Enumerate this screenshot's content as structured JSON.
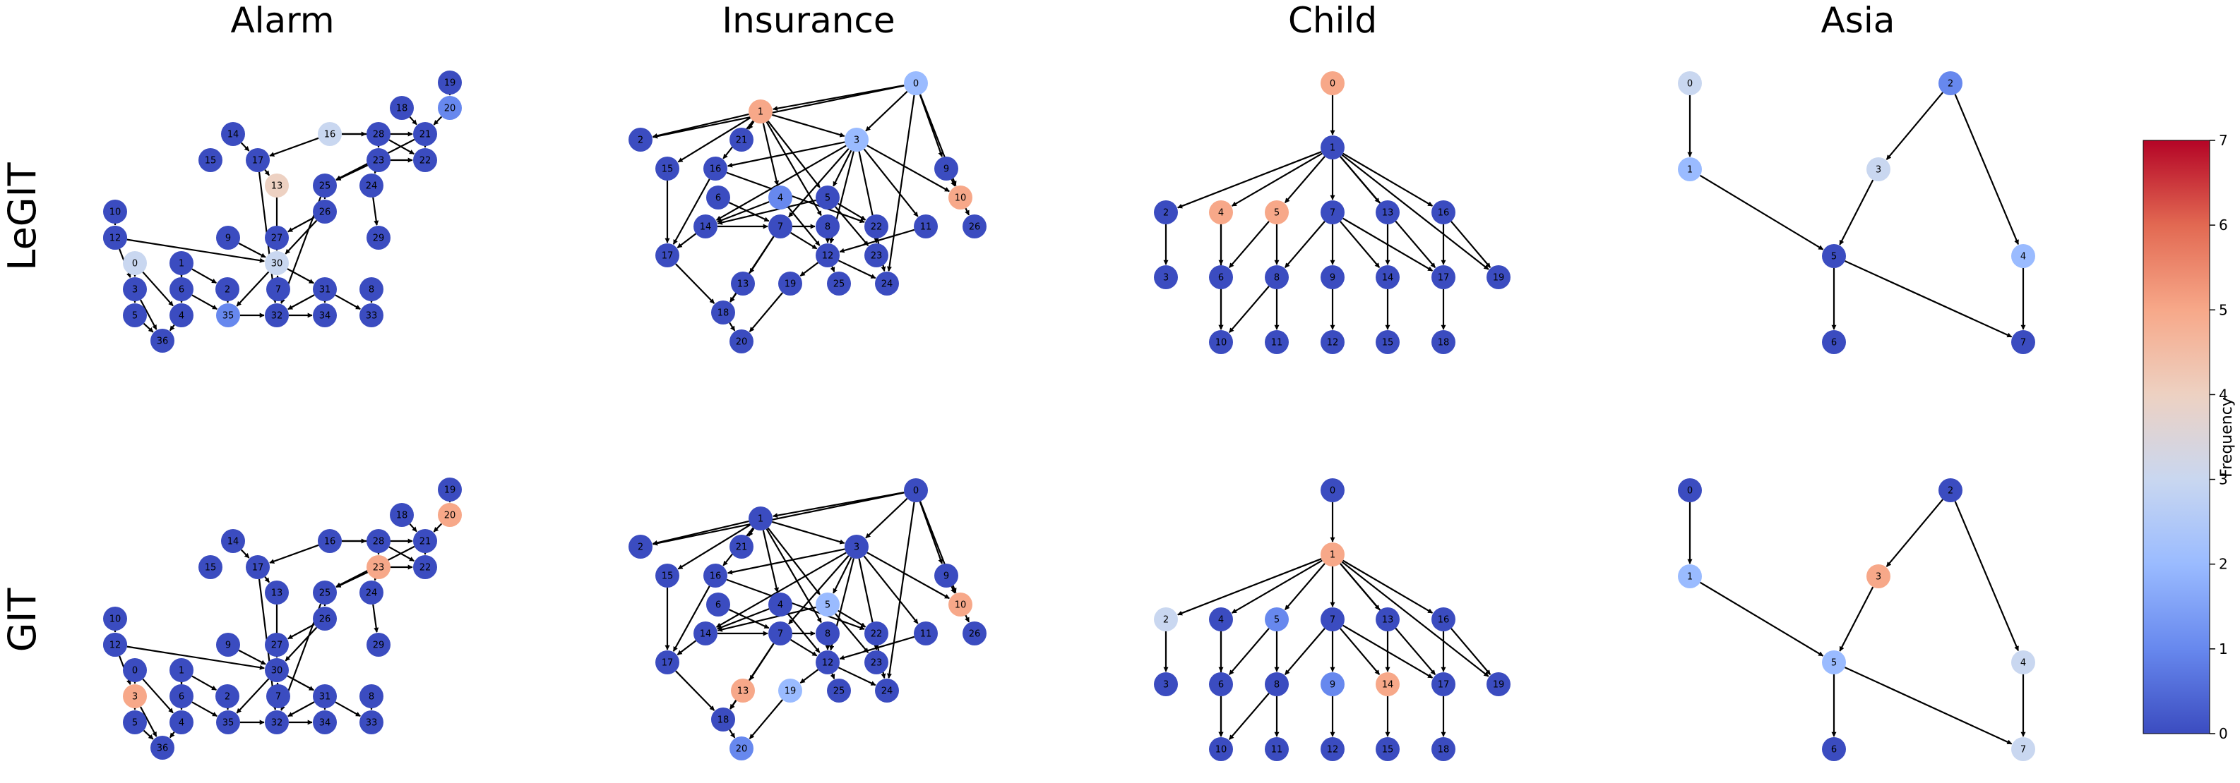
{
  "column_titles": [
    "Alarm",
    "Insurance",
    "Child",
    "Asia"
  ],
  "row_labels": [
    "LeGIT",
    "GIT"
  ],
  "colorbar": {
    "label": "Frequency",
    "ticks": [
      "0",
      "1",
      "2",
      "3",
      "4",
      "5",
      "6",
      "7"
    ],
    "min": 0,
    "max": 7,
    "colormap": "coolwarm",
    "stops": [
      "#3b4cc0",
      "#6788ee",
      "#9abbff",
      "#c9d7f0",
      "#edd1c2",
      "#f7a889",
      "#e26952",
      "#b40426"
    ]
  },
  "node_colors": {
    "0": "#3b4cc0",
    "1": "#6f92f3",
    "2": "#aac7fd",
    "3": "#d9dce1",
    "5": "#f4987a"
  },
  "graphs": {
    "asia": {
      "nodes": [
        {
          "id": "0",
          "freq": {
            "legit": 3,
            "git": 0
          }
        },
        {
          "id": "1",
          "freq": {
            "legit": 2,
            "git": 2
          }
        },
        {
          "id": "2",
          "freq": {
            "legit": 1,
            "git": 0
          }
        },
        {
          "id": "3",
          "freq": {
            "legit": 3,
            "git": 5
          }
        },
        {
          "id": "4",
          "freq": {
            "legit": 2,
            "git": 3
          }
        },
        {
          "id": "5",
          "freq": {
            "legit": 0,
            "git": 2
          }
        },
        {
          "id": "6",
          "freq": {
            "legit": 0,
            "git": 0
          }
        },
        {
          "id": "7",
          "freq": {
            "legit": 0,
            "git": 3
          }
        }
      ],
      "edges": [
        [
          "0",
          "1"
        ],
        [
          "1",
          "5"
        ],
        [
          "2",
          "3"
        ],
        [
          "2",
          "4"
        ],
        [
          "3",
          "5"
        ],
        [
          "4",
          "7"
        ],
        [
          "5",
          "6"
        ],
        [
          "5",
          "7"
        ]
      ]
    },
    "child": {
      "nodes": [
        {
          "id": "0",
          "freq": {
            "legit": 5,
            "git": 0
          }
        },
        {
          "id": "1",
          "freq": {
            "legit": 0,
            "git": 5
          }
        },
        {
          "id": "2",
          "freq": {
            "legit": 0,
            "git": 3
          }
        },
        {
          "id": "3",
          "freq": {
            "legit": 0,
            "git": 0
          }
        },
        {
          "id": "4",
          "freq": {
            "legit": 5,
            "git": 0
          }
        },
        {
          "id": "5",
          "freq": {
            "legit": 5,
            "git": 1
          }
        },
        {
          "id": "6",
          "freq": {
            "legit": 0,
            "git": 0
          }
        },
        {
          "id": "7",
          "freq": {
            "legit": 0,
            "git": 0
          }
        },
        {
          "id": "8",
          "freq": {
            "legit": 0,
            "git": 0
          }
        },
        {
          "id": "9",
          "freq": {
            "legit": 0,
            "git": 1
          }
        },
        {
          "id": "10",
          "freq": {
            "legit": 0,
            "git": 0
          }
        },
        {
          "id": "11",
          "freq": {
            "legit": 0,
            "git": 0
          }
        },
        {
          "id": "12",
          "freq": {
            "legit": 0,
            "git": 0
          }
        },
        {
          "id": "13",
          "freq": {
            "legit": 0,
            "git": 0
          }
        },
        {
          "id": "14",
          "freq": {
            "legit": 0,
            "git": 5
          }
        },
        {
          "id": "15",
          "freq": {
            "legit": 0,
            "git": 0
          }
        },
        {
          "id": "16",
          "freq": {
            "legit": 0,
            "git": 0
          }
        },
        {
          "id": "17",
          "freq": {
            "legit": 0,
            "git": 0
          }
        },
        {
          "id": "18",
          "freq": {
            "legit": 0,
            "git": 0
          }
        },
        {
          "id": "19",
          "freq": {
            "legit": 0,
            "git": 0
          }
        }
      ],
      "edges": [
        [
          "0",
          "1"
        ],
        [
          "1",
          "2"
        ],
        [
          "1",
          "4"
        ],
        [
          "1",
          "5"
        ],
        [
          "1",
          "7"
        ],
        [
          "1",
          "13"
        ],
        [
          "1",
          "16"
        ],
        [
          "1",
          "19"
        ],
        [
          "1",
          "17"
        ],
        [
          "2",
          "3"
        ],
        [
          "4",
          "6"
        ],
        [
          "5",
          "6"
        ],
        [
          "5",
          "8"
        ],
        [
          "4",
          "10"
        ],
        [
          "6",
          "10"
        ],
        [
          "7",
          "8"
        ],
        [
          "7",
          "9"
        ],
        [
          "7",
          "14"
        ],
        [
          "7",
          "17"
        ],
        [
          "8",
          "11"
        ],
        [
          "8",
          "10"
        ],
        [
          "9",
          "12"
        ],
        [
          "13",
          "14"
        ],
        [
          "14",
          "15"
        ],
        [
          "16",
          "17"
        ],
        [
          "16",
          "19"
        ],
        [
          "17",
          "18"
        ]
      ]
    },
    "insurance": {
      "nodes": [
        {
          "id": "0",
          "freq": {
            "legit": 2,
            "git": 0
          }
        },
        {
          "id": "1",
          "freq": {
            "legit": 5,
            "git": 0
          }
        },
        {
          "id": "2",
          "freq": {
            "legit": 0,
            "git": 0
          }
        },
        {
          "id": "3",
          "freq": {
            "legit": 2,
            "git": 0
          }
        },
        {
          "id": "4",
          "freq": {
            "legit": 1,
            "git": 0
          }
        },
        {
          "id": "5",
          "freq": {
            "legit": 0,
            "git": 2
          }
        },
        {
          "id": "6",
          "freq": {
            "legit": 0,
            "git": 0
          }
        },
        {
          "id": "7",
          "freq": {
            "legit": 0,
            "git": 0
          }
        },
        {
          "id": "8",
          "freq": {
            "legit": 0,
            "git": 0
          }
        },
        {
          "id": "9",
          "freq": {
            "legit": 0,
            "git": 0
          }
        },
        {
          "id": "10",
          "freq": {
            "legit": 5,
            "git": 5
          }
        },
        {
          "id": "11",
          "freq": {
            "legit": 0,
            "git": 0
          }
        },
        {
          "id": "12",
          "freq": {
            "legit": 0,
            "git": 0
          }
        },
        {
          "id": "13",
          "freq": {
            "legit": 0,
            "git": 5
          }
        },
        {
          "id": "14",
          "freq": {
            "legit": 0,
            "git": 0
          }
        },
        {
          "id": "15",
          "freq": {
            "legit": 0,
            "git": 0
          }
        },
        {
          "id": "16",
          "freq": {
            "legit": 0,
            "git": 0
          }
        },
        {
          "id": "17",
          "freq": {
            "legit": 0,
            "git": 0
          }
        },
        {
          "id": "18",
          "freq": {
            "legit": 0,
            "git": 0
          }
        },
        {
          "id": "19",
          "freq": {
            "legit": 0,
            "git": 2
          }
        },
        {
          "id": "20",
          "freq": {
            "legit": 0,
            "git": 1
          }
        },
        {
          "id": "21",
          "freq": {
            "legit": 0,
            "git": 0
          }
        },
        {
          "id": "22",
          "freq": {
            "legit": 0,
            "git": 0
          }
        },
        {
          "id": "23",
          "freq": {
            "legit": 0,
            "git": 0
          }
        },
        {
          "id": "24",
          "freq": {
            "legit": 0,
            "git": 0
          }
        },
        {
          "id": "25",
          "freq": {
            "legit": 0,
            "git": 0
          }
        },
        {
          "id": "26",
          "freq": {
            "legit": 0,
            "git": 0
          }
        }
      ],
      "edges": [
        [
          "0",
          "2"
        ],
        [
          "0",
          "1"
        ],
        [
          "0",
          "3"
        ],
        [
          "0",
          "9"
        ],
        [
          "0",
          "10"
        ],
        [
          "0",
          "24"
        ],
        [
          "1",
          "2"
        ],
        [
          "1",
          "21"
        ],
        [
          "1",
          "15"
        ],
        [
          "1",
          "16"
        ],
        [
          "1",
          "4"
        ],
        [
          "1",
          "5"
        ],
        [
          "1",
          "8"
        ],
        [
          "1",
          "3"
        ],
        [
          "3",
          "16"
        ],
        [
          "3",
          "5"
        ],
        [
          "3",
          "14"
        ],
        [
          "3",
          "7"
        ],
        [
          "3",
          "11"
        ],
        [
          "3",
          "10"
        ],
        [
          "3",
          "24"
        ],
        [
          "3",
          "12"
        ],
        [
          "4",
          "12"
        ],
        [
          "4",
          "14"
        ],
        [
          "5",
          "14"
        ],
        [
          "5",
          "22"
        ],
        [
          "5",
          "23"
        ],
        [
          "6",
          "7"
        ],
        [
          "7",
          "8"
        ],
        [
          "7",
          "18"
        ],
        [
          "7",
          "13"
        ],
        [
          "7",
          "12"
        ],
        [
          "8",
          "12"
        ],
        [
          "9",
          "10"
        ],
        [
          "10",
          "26"
        ],
        [
          "11",
          "12"
        ],
        [
          "12",
          "19"
        ],
        [
          "12",
          "25"
        ],
        [
          "12",
          "24"
        ],
        [
          "13",
          "18"
        ],
        [
          "14",
          "17"
        ],
        [
          "14",
          "7"
        ],
        [
          "15",
          "17"
        ],
        [
          "16",
          "17"
        ],
        [
          "16",
          "22"
        ],
        [
          "17",
          "18"
        ],
        [
          "18",
          "20"
        ],
        [
          "19",
          "20"
        ],
        [
          "22",
          "23"
        ]
      ]
    },
    "alarm": {
      "nodes": [
        {
          "id": "0",
          "freq": {
            "legit": 3,
            "git": 0
          }
        },
        {
          "id": "1",
          "freq": {
            "legit": 0,
            "git": 0
          }
        },
        {
          "id": "2",
          "freq": {
            "legit": 0,
            "git": 0
          }
        },
        {
          "id": "3",
          "freq": {
            "legit": 0,
            "git": 5
          }
        },
        {
          "id": "4",
          "freq": {
            "legit": 0,
            "git": 0
          }
        },
        {
          "id": "5",
          "freq": {
            "legit": 0,
            "git": 0
          }
        },
        {
          "id": "6",
          "freq": {
            "legit": 0,
            "git": 0
          }
        },
        {
          "id": "7",
          "freq": {
            "legit": 0,
            "git": 0
          }
        },
        {
          "id": "8",
          "freq": {
            "legit": 0,
            "git": 0
          }
        },
        {
          "id": "9",
          "freq": {
            "legit": 0,
            "git": 0
          }
        },
        {
          "id": "10",
          "freq": {
            "legit": 0,
            "git": 0
          }
        },
        {
          "id": "11",
          "freq": {
            "legit": 0,
            "git": 0
          }
        },
        {
          "id": "12",
          "freq": {
            "legit": 0,
            "git": 0
          }
        },
        {
          "id": "13",
          "freq": {
            "legit": 4,
            "git": 0
          }
        },
        {
          "id": "14",
          "freq": {
            "legit": 0,
            "git": 0
          }
        },
        {
          "id": "15",
          "freq": {
            "legit": 0,
            "git": 0
          }
        },
        {
          "id": "16",
          "freq": {
            "legit": 3,
            "git": 0
          }
        },
        {
          "id": "17",
          "freq": {
            "legit": 0,
            "git": 0
          }
        },
        {
          "id": "18",
          "freq": {
            "legit": 0,
            "git": 0
          }
        },
        {
          "id": "19",
          "freq": {
            "legit": 0,
            "git": 0
          }
        },
        {
          "id": "20",
          "freq": {
            "legit": 1,
            "git": 5
          }
        },
        {
          "id": "21",
          "freq": {
            "legit": 0,
            "git": 0
          }
        },
        {
          "id": "22",
          "freq": {
            "legit": 0,
            "git": 0
          }
        },
        {
          "id": "23",
          "freq": {
            "legit": 0,
            "git": 5
          }
        },
        {
          "id": "24",
          "freq": {
            "legit": 0,
            "git": 0
          }
        },
        {
          "id": "25",
          "freq": {
            "legit": 0,
            "git": 0
          }
        },
        {
          "id": "26",
          "freq": {
            "legit": 0,
            "git": 0
          }
        },
        {
          "id": "27",
          "freq": {
            "legit": 0,
            "git": 0
          }
        },
        {
          "id": "28",
          "freq": {
            "legit": 0,
            "git": 0
          }
        },
        {
          "id": "29",
          "freq": {
            "legit": 0,
            "git": 0
          }
        },
        {
          "id": "30",
          "freq": {
            "legit": 3,
            "git": 0
          }
        },
        {
          "id": "31",
          "freq": {
            "legit": 0,
            "git": 0
          }
        },
        {
          "id": "32",
          "freq": {
            "legit": 0,
            "git": 0
          }
        },
        {
          "id": "33",
          "freq": {
            "legit": 0,
            "git": 0
          }
        },
        {
          "id": "34",
          "freq": {
            "legit": 0,
            "git": 0
          }
        },
        {
          "id": "35",
          "freq": {
            "legit": 1,
            "git": 0
          }
        },
        {
          "id": "36",
          "freq": {
            "legit": 0,
            "git": 0
          }
        }
      ],
      "edges": [
        [
          "0",
          "3"
        ],
        [
          "0",
          "4"
        ],
        [
          "1",
          "4"
        ],
        [
          "1",
          "6"
        ],
        [
          "1",
          "2"
        ],
        [
          "2",
          "35"
        ],
        [
          "3",
          "5"
        ],
        [
          "3",
          "36"
        ],
        [
          "4",
          "36"
        ],
        [
          "5",
          "36"
        ],
        [
          "6",
          "35"
        ],
        [
          "7",
          "30"
        ],
        [
          "8",
          "33"
        ],
        [
          "9",
          "30"
        ],
        [
          "10",
          "11"
        ],
        [
          "11",
          "30"
        ],
        [
          "12",
          "3"
        ],
        [
          "13",
          "30"
        ],
        [
          "14",
          "17"
        ],
        [
          "16",
          "17"
        ],
        [
          "16",
          "21"
        ],
        [
          "16",
          "28"
        ],
        [
          "17",
          "13"
        ],
        [
          "17",
          "32"
        ],
        [
          "18",
          "21"
        ],
        [
          "19",
          "20"
        ],
        [
          "20",
          "21"
        ],
        [
          "21",
          "22"
        ],
        [
          "21",
          "25"
        ],
        [
          "23",
          "22"
        ],
        [
          "23",
          "25"
        ],
        [
          "23",
          "24"
        ],
        [
          "24",
          "29"
        ],
        [
          "25",
          "26"
        ],
        [
          "25",
          "32"
        ],
        [
          "26",
          "30"
        ],
        [
          "26",
          "27"
        ],
        [
          "27",
          "30"
        ],
        [
          "28",
          "23"
        ],
        [
          "28",
          "22"
        ],
        [
          "30",
          "31"
        ],
        [
          "30",
          "35"
        ],
        [
          "31",
          "34"
        ],
        [
          "31",
          "33"
        ],
        [
          "31",
          "32"
        ],
        [
          "35",
          "32"
        ],
        [
          "32",
          "34"
        ]
      ]
    }
  }
}
